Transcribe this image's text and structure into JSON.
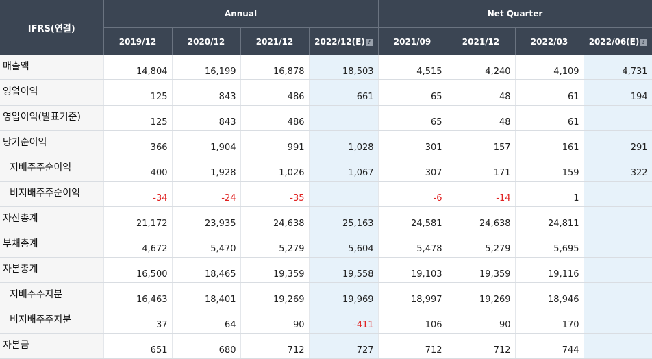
{
  "header": {
    "row_head": "IFRS(연결)",
    "groups": [
      {
        "label": "Annual",
        "span": 4
      },
      {
        "label": "Net Quarter",
        "span": 4
      }
    ],
    "periods": [
      "2019/12",
      "2020/12",
      "2021/12",
      "2022/12(E)",
      "2021/09",
      "2021/12",
      "2022/03",
      "2022/06(E)"
    ],
    "estimate_columns": [
      3,
      7
    ],
    "help_icon_glyph": "?"
  },
  "rows": [
    {
      "label": "매출액",
      "indent": false,
      "values": [
        "14,804",
        "16,199",
        "16,878",
        "18,503",
        "4,515",
        "4,240",
        "4,109",
        "4,731"
      ]
    },
    {
      "label": "영업이익",
      "indent": false,
      "values": [
        "125",
        "843",
        "486",
        "661",
        "65",
        "48",
        "61",
        "194"
      ]
    },
    {
      "label": "영업이익(발표기준)",
      "indent": false,
      "values": [
        "125",
        "843",
        "486",
        "",
        "65",
        "48",
        "61",
        ""
      ]
    },
    {
      "label": "당기순이익",
      "indent": false,
      "values": [
        "366",
        "1,904",
        "991",
        "1,028",
        "301",
        "157",
        "161",
        "291"
      ]
    },
    {
      "label": "지배주주순이익",
      "indent": true,
      "values": [
        "400",
        "1,928",
        "1,026",
        "1,067",
        "307",
        "171",
        "159",
        "322"
      ]
    },
    {
      "label": "비지배주주순이익",
      "indent": true,
      "values": [
        "-34",
        "-24",
        "-35",
        "",
        "-6",
        "-14",
        "1",
        ""
      ]
    },
    {
      "label": "자산총계",
      "indent": false,
      "values": [
        "21,172",
        "23,935",
        "24,638",
        "25,163",
        "24,581",
        "24,638",
        "24,811",
        ""
      ]
    },
    {
      "label": "부채총계",
      "indent": false,
      "values": [
        "4,672",
        "5,470",
        "5,279",
        "5,604",
        "5,478",
        "5,279",
        "5,695",
        ""
      ]
    },
    {
      "label": "자본총계",
      "indent": false,
      "values": [
        "16,500",
        "18,465",
        "19,359",
        "19,558",
        "19,103",
        "19,359",
        "19,116",
        ""
      ]
    },
    {
      "label": "지배주주지분",
      "indent": true,
      "values": [
        "16,463",
        "18,401",
        "19,269",
        "19,969",
        "18,997",
        "19,269",
        "18,946",
        ""
      ]
    },
    {
      "label": "비지배주주지분",
      "indent": true,
      "values": [
        "37",
        "64",
        "90",
        "-411",
        "106",
        "90",
        "170",
        ""
      ]
    },
    {
      "label": "자본금",
      "indent": false,
      "values": [
        "651",
        "680",
        "712",
        "727",
        "712",
        "712",
        "744",
        ""
      ]
    }
  ],
  "colors": {
    "header_bg": "#3b4553",
    "estimate_bg": "#e7f2fa",
    "negative_text": "#e02020",
    "label_bg": "#f6f6f6"
  }
}
